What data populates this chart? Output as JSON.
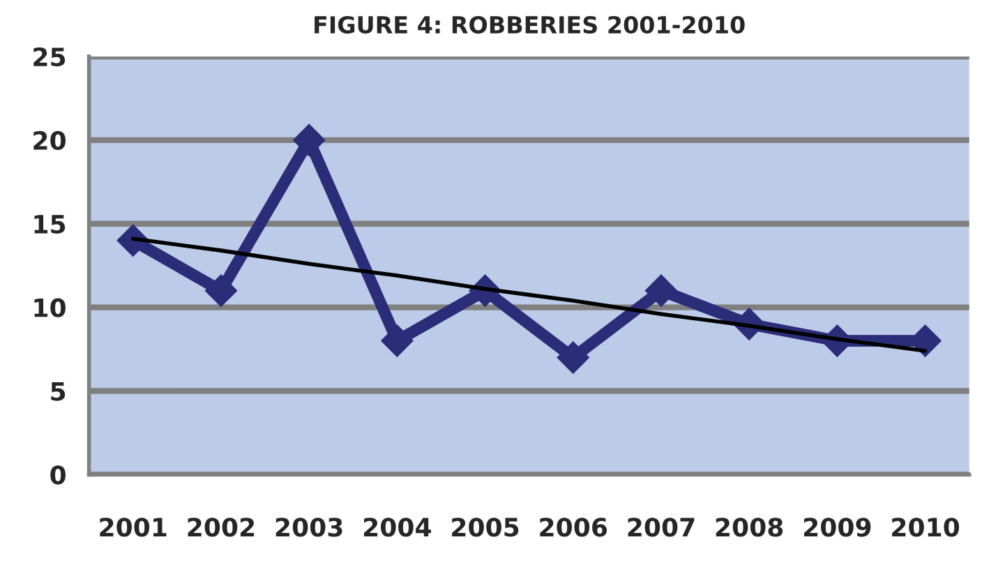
{
  "chart_data": {
    "type": "line",
    "title": "FIGURE 4: ROBBERIES 2001-2010",
    "categories": [
      "2001",
      "2002",
      "2003",
      "2004",
      "2005",
      "2006",
      "2007",
      "2008",
      "2009",
      "2010"
    ],
    "series": [
      {
        "color": "#2b2d78",
        "values": [
          14,
          11,
          20,
          8,
          11,
          7,
          11,
          9,
          8,
          8
        ],
        "marker": "diamond"
      },
      {
        "color": "#000000",
        "values": [
          14.1,
          13.4,
          12.6,
          11.9,
          11.1,
          10.4,
          9.6,
          8.9,
          8.1,
          7.4
        ],
        "marker": "none"
      }
    ],
    "ylim": [
      0,
      25
    ],
    "yticks": [
      0,
      5,
      10,
      15,
      20,
      25
    ],
    "grid": "y",
    "legend": false
  }
}
